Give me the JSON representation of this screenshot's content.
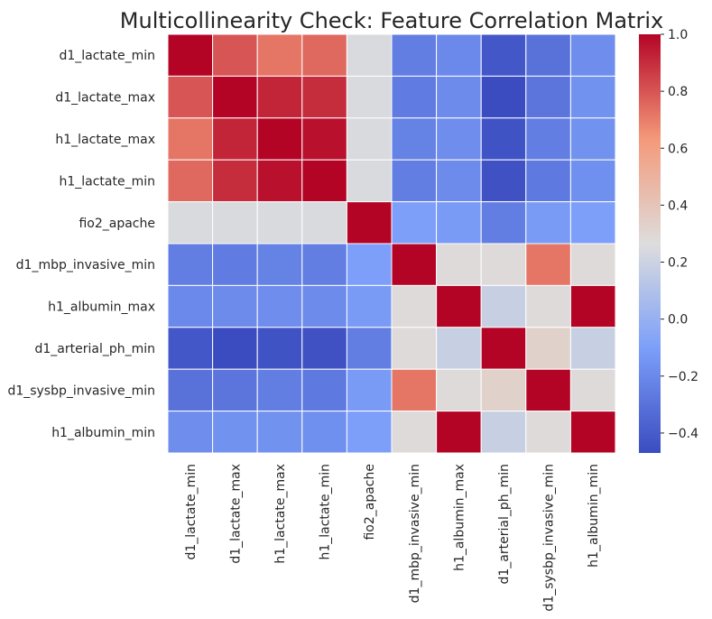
{
  "chart_data": {
    "type": "heatmap",
    "title": "Multicollinearity Check: Feature Correlation Matrix",
    "colormap": "coolwarm",
    "rows": [
      "d1_lactate_min",
      "d1_lactate_max",
      "h1_lactate_max",
      "h1_lactate_min",
      "fio2_apache",
      "d1_mbp_invasive_min",
      "h1_albumin_max",
      "d1_arterial_ph_min",
      "d1_sysbp_invasive_min",
      "h1_albumin_min"
    ],
    "columns": [
      "d1_lactate_min",
      "d1_lactate_max",
      "h1_lactate_max",
      "h1_lactate_min",
      "fio2_apache",
      "d1_mbp_invasive_min",
      "h1_albumin_max",
      "d1_arterial_ph_min",
      "d1_sysbp_invasive_min",
      "h1_albumin_min"
    ],
    "values": [
      [
        1.0,
        0.8,
        0.72,
        0.75,
        0.25,
        -0.25,
        -0.2,
        -0.42,
        -0.3,
        -0.18
      ],
      [
        0.8,
        1.0,
        0.92,
        0.9,
        0.25,
        -0.26,
        -0.19,
        -0.47,
        -0.29,
        -0.16
      ],
      [
        0.72,
        0.92,
        1.0,
        0.97,
        0.25,
        -0.23,
        -0.18,
        -0.44,
        -0.25,
        -0.16
      ],
      [
        0.75,
        0.9,
        0.97,
        1.0,
        0.25,
        -0.25,
        -0.19,
        -0.45,
        -0.27,
        -0.17
      ],
      [
        0.25,
        0.25,
        0.25,
        0.25,
        1.0,
        -0.1,
        -0.12,
        -0.25,
        -0.12,
        -0.1
      ],
      [
        -0.25,
        -0.26,
        -0.23,
        -0.25,
        -0.1,
        1.0,
        0.28,
        0.28,
        0.72,
        0.28
      ],
      [
        -0.2,
        -0.19,
        -0.18,
        -0.19,
        -0.12,
        0.28,
        1.0,
        0.18,
        0.28,
        1.0
      ],
      [
        -0.42,
        -0.47,
        -0.44,
        -0.45,
        -0.25,
        0.28,
        0.18,
        1.0,
        0.33,
        0.18
      ],
      [
        -0.3,
        -0.29,
        -0.25,
        -0.27,
        -0.12,
        0.72,
        0.28,
        0.33,
        1.0,
        0.28
      ],
      [
        -0.18,
        -0.16,
        -0.16,
        -0.17,
        -0.1,
        0.28,
        1.0,
        0.18,
        0.28,
        1.0
      ]
    ],
    "vmin": -0.47,
    "vmax": 1.0,
    "colorbar_ticks": [
      "1.0",
      "0.8",
      "0.6",
      "0.4",
      "0.2",
      "0.0",
      "−0.2",
      "−0.4"
    ],
    "colorbar_tick_values": [
      1.0,
      0.8,
      0.6,
      0.4,
      0.2,
      0.0,
      -0.2,
      -0.4
    ]
  }
}
